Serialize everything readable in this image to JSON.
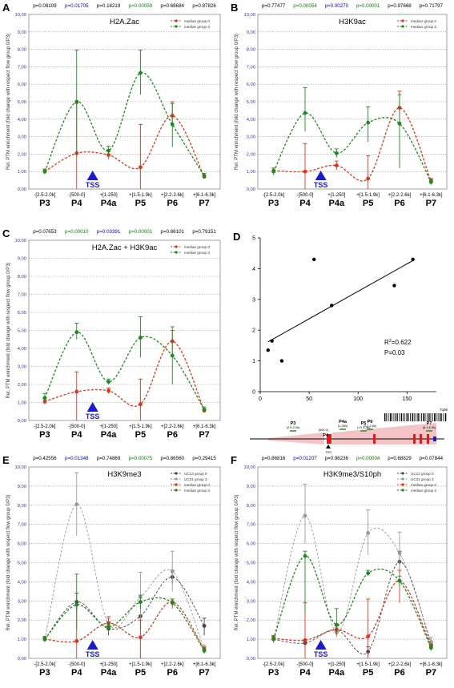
{
  "chart_data": [
    {
      "id": "A",
      "type": "line",
      "panel_letter": "A",
      "title": "H2A.Zac",
      "ylabel": "Rel. PTM enrichment (fold change with respect flow group 0/P3)",
      "ylim": [
        0,
        10
      ],
      "yticks": [
        "0,00",
        "1,00",
        "2,00",
        "3,00",
        "4,00",
        "5,00",
        "6,00",
        "7,00",
        "8,00",
        "9,00",
        "10,00"
      ],
      "categories": [
        "P3",
        "P4",
        "P4a",
        "P5",
        "P6",
        "P7"
      ],
      "ranges": [
        "-[2.5-2.0k]",
        "-[500-0]",
        "+[1-250]",
        "+[1.5-1.9k]",
        "+[2.2-2.6k]",
        "+[6.1-6.3k]"
      ],
      "pvalues": [
        {
          "text": "p=0.08109",
          "color": "#000000"
        },
        {
          "text": "p=0.01705",
          "color": "#0000cc"
        },
        {
          "text": "p=0.18219",
          "color": "#000000"
        },
        {
          "text": "p=0.00059",
          "color": "#008800"
        },
        {
          "text": "p=0.68684",
          "color": "#000000"
        },
        {
          "text": "p=0.87826",
          "color": "#000000"
        }
      ],
      "tss": {
        "label": "TSS",
        "between": [
          1,
          2
        ]
      },
      "series": [
        {
          "name": "median group 0",
          "color": "#e8301a",
          "values": [
            1.0,
            2.05,
            1.95,
            1.25,
            4.2,
            0.7
          ],
          "err": [
            [
              0.9,
              1.1
            ],
            [
              0.0,
              4.9
            ],
            [
              1.7,
              2.2
            ],
            [
              0.0,
              3.7
            ],
            [
              3.6,
              5.0
            ],
            [
              0.6,
              0.8
            ]
          ]
        },
        {
          "name": "median group 3",
          "color": "#1a8c1a",
          "values": [
            1.0,
            5.0,
            2.2,
            6.65,
            3.7,
            0.75
          ],
          "err": [
            [
              0.85,
              1.15
            ],
            [
              1.9,
              7.95
            ],
            [
              1.9,
              2.45
            ],
            [
              5.4,
              7.95
            ],
            [
              2.4,
              4.9
            ],
            [
              0.6,
              0.9
            ]
          ]
        }
      ]
    },
    {
      "id": "B",
      "type": "line",
      "panel_letter": "B",
      "title": "H3K9ac",
      "ylabel": "Rel. PTM enrichment (fold change with respect flow group 0/P3)",
      "ylim": [
        0,
        10
      ],
      "yticks": [
        "0,00",
        "1,00",
        "2,00",
        "3,00",
        "4,00",
        "5,00",
        "6,00",
        "7,00",
        "8,00",
        "9,00",
        "10,00"
      ],
      "categories": [
        "P3",
        "P4",
        "P4a",
        "P5",
        "P6",
        "P7"
      ],
      "ranges": [
        "-[2.5-2.0k]",
        "-[500-0]",
        "+[1-250]",
        "+[1.5-1.9k]",
        "+[2.2-2.6k]",
        "+[6.1-6.3k]"
      ],
      "pvalues": [
        {
          "text": "p=0.77477",
          "color": "#000000"
        },
        {
          "text": "p=0.00054",
          "color": "#008800"
        },
        {
          "text": "p=0.00270",
          "color": "#0000cc"
        },
        {
          "text": "p=0.00001",
          "color": "#008800"
        },
        {
          "text": "p=0.97668",
          "color": "#000000"
        },
        {
          "text": "p=0.71797",
          "color": "#000000"
        }
      ],
      "tss": {
        "label": "TSS",
        "between": [
          1,
          2
        ]
      },
      "series": [
        {
          "name": "median group 0",
          "color": "#e8301a",
          "values": [
            1.05,
            1.0,
            1.35,
            0.6,
            4.65,
            0.45
          ],
          "err": [
            [
              0.9,
              1.2
            ],
            [
              0.0,
              2.6
            ],
            [
              1.1,
              1.6
            ],
            [
              0.0,
              1.9
            ],
            [
              3.6,
              5.6
            ],
            [
              0.3,
              0.6
            ]
          ]
        },
        {
          "name": "median group 3",
          "color": "#1a8c1a",
          "values": [
            1.0,
            4.35,
            2.05,
            3.8,
            3.75,
            0.4
          ],
          "err": [
            [
              0.8,
              1.2
            ],
            [
              3.3,
              5.8
            ],
            [
              1.8,
              2.3
            ],
            [
              2.7,
              4.7
            ],
            [
              1.2,
              5.4
            ],
            [
              0.25,
              0.55
            ]
          ]
        }
      ]
    },
    {
      "id": "C",
      "type": "line",
      "panel_letter": "C",
      "title": "H2A.Zac + H3K9ac",
      "ylabel": "Rel. PTM enrichment (fold change with respect flow group 0/P3)",
      "ylim": [
        0,
        10
      ],
      "yticks": [
        "0,00",
        "1,00",
        "2,00",
        "3,00",
        "4,00",
        "5,00",
        "6,00",
        "7,00",
        "8,00",
        "9,00",
        "10,00"
      ],
      "categories": [
        "P3",
        "P4",
        "P4a",
        "P5",
        "P6",
        "P7"
      ],
      "ranges": [
        "-[2.5-2.0k]",
        "-[500-0]",
        "+[1-250]",
        "+[1.5-1.9k]",
        "+[2.2-2.6k]",
        "+[6.1-6.3k]"
      ],
      "pvalues": [
        {
          "text": "p=0.07653",
          "color": "#000000"
        },
        {
          "text": "p=0.00010",
          "color": "#008800"
        },
        {
          "text": "p=0.03391",
          "color": "#0000cc"
        },
        {
          "text": "p=0.00001",
          "color": "#008800"
        },
        {
          "text": "p=0.86101",
          "color": "#000000"
        },
        {
          "text": "p=0.79151",
          "color": "#000000"
        }
      ],
      "tss": {
        "label": "TSS",
        "between": [
          1,
          2
        ]
      },
      "series": [
        {
          "name": "median group 0",
          "color": "#e8301a",
          "values": [
            1.05,
            1.6,
            1.65,
            0.9,
            4.4,
            0.55
          ],
          "err": [
            [
              0.9,
              1.2
            ],
            [
              0.0,
              2.7
            ],
            [
              1.5,
              1.8
            ],
            [
              0.0,
              2.3
            ],
            [
              3.6,
              5.0
            ],
            [
              0.45,
              0.65
            ]
          ]
        },
        {
          "name": "median group 3",
          "color": "#1a8c1a",
          "values": [
            1.25,
            4.9,
            2.15,
            4.6,
            3.6,
            0.6
          ],
          "err": [
            [
              1.0,
              1.5
            ],
            [
              4.5,
              5.4
            ],
            [
              2.0,
              2.3
            ],
            [
              3.5,
              5.75
            ],
            [
              2.0,
              5.2
            ],
            [
              0.45,
              0.75
            ]
          ]
        }
      ]
    },
    {
      "id": "D",
      "type": "scatter",
      "panel_letter": "D",
      "title": "",
      "xlim": [
        0,
        180
      ],
      "ylim": [
        0,
        5
      ],
      "xticks": [
        "0",
        "50",
        "100",
        "150"
      ],
      "yticks": [
        "0",
        "1",
        "2",
        "3",
        "4",
        "5"
      ],
      "x": [
        8,
        12,
        22,
        55,
        73,
        137,
        156
      ],
      "y": [
        1.35,
        1.65,
        1.0,
        4.3,
        2.8,
        3.45,
        4.3
      ],
      "fit": {
        "x": [
          8,
          157
        ],
        "y": [
          1.62,
          4.28
        ]
      },
      "annotations": {
        "r2_prefix": "R",
        "r2_exp": "2",
        "r2_value": "=0.622",
        "p": "P=0.03"
      }
    },
    {
      "id": "E",
      "type": "line",
      "panel_letter": "E",
      "title": "H3K9me3",
      "ylabel": "Rel. PTM enrichment (fold change with respect flow group 0/P3)",
      "ylim": [
        0,
        10
      ],
      "yticks": [
        "0,00",
        "1,00",
        "2,00",
        "3,00",
        "4,00",
        "5,00",
        "6,00",
        "7,00",
        "8,00",
        "9,00",
        "10,00"
      ],
      "categories": [
        "P3",
        "P4",
        "P4a",
        "P5",
        "P6",
        "P7"
      ],
      "ranges": [
        "-[2.5-2.0k]",
        "-[500-0]",
        "+[1-250]",
        "+[1.5-1.9k]",
        "+[2.2-2.6k]",
        "+[6.1-6.3k]"
      ],
      "pvalues": [
        {
          "text": "p=0.42556",
          "color": "#000000"
        },
        {
          "text": "p=0.01348",
          "color": "#0000cc"
        },
        {
          "text": "p=0.74869",
          "color": "#000000"
        },
        {
          "text": "p=0.00075",
          "color": "#008800"
        },
        {
          "text": "p=0.86560",
          "color": "#000000"
        },
        {
          "text": "p=0.29415",
          "color": "#000000"
        }
      ],
      "tss": {
        "label": "TSS",
        "between": [
          1,
          2
        ]
      },
      "series": [
        {
          "name": "UC13 group 0",
          "color": "#444444",
          "values": [
            1.0,
            2.95,
            1.55,
            2.2,
            4.25,
            1.7
          ],
          "err": [
            [
              0.9,
              1.1
            ],
            [
              2.5,
              3.4
            ],
            [
              1.2,
              1.9
            ],
            [
              1.5,
              2.9
            ],
            [
              3.9,
              4.6
            ],
            [
              1.2,
              2.1
            ]
          ]
        },
        {
          "name": "UC31 group 3",
          "color": "#999999",
          "values": [
            1.0,
            8.05,
            1.8,
            3.2,
            4.55,
            0.5
          ],
          "err": [
            [
              0.9,
              1.1
            ],
            [
              6.4,
              9.7
            ],
            [
              1.4,
              2.2
            ],
            [
              2.0,
              4.5
            ],
            [
              3.5,
              5.6
            ],
            [
              0.3,
              0.7
            ]
          ]
        },
        {
          "name": "median group 0",
          "color": "#e8301a",
          "values": [
            1.0,
            0.9,
            1.85,
            1.1,
            2.95,
            0.45
          ],
          "err": [
            [
              0.9,
              1.1
            ],
            [
              0.0,
              2.8
            ],
            [
              1.5,
              2.1
            ],
            [
              0.0,
              2.0
            ],
            [
              2.6,
              3.1
            ],
            [
              0.3,
              0.6
            ]
          ]
        },
        {
          "name": "median group 3",
          "color": "#1a8c1a",
          "values": [
            1.0,
            2.8,
            1.65,
            2.95,
            2.9,
            0.4
          ],
          "err": [
            [
              0.85,
              1.15
            ],
            [
              1.5,
              4.4
            ],
            [
              1.4,
              1.9
            ],
            [
              2.6,
              3.3
            ],
            [
              2.7,
              3.1
            ],
            [
              0.25,
              0.55
            ]
          ]
        }
      ]
    },
    {
      "id": "F",
      "type": "line",
      "panel_letter": "F",
      "title": "H3K9me3/S10ph",
      "ylabel": "Rel. PTM enrichment (fold change with respect flow group 0/P3)",
      "ylim": [
        0,
        10
      ],
      "yticks": [
        "0,00",
        "1,00",
        "2,00",
        "3,00",
        "4,00",
        "5,00",
        "6,00",
        "7,00",
        "8,00",
        "9,00",
        "10,00"
      ],
      "categories": [
        "P3",
        "P4",
        "P4a",
        "P5",
        "P6",
        "P7"
      ],
      "ranges": [
        "-[2.5-2.0k]",
        "-[500-0]",
        "+[1-250]",
        "+[1.5-1.9k]",
        "+[2.2-2.6k]",
        "+[6.1-6.3k]"
      ],
      "pvalues": [
        {
          "text": "p=0.86816",
          "color": "#000000"
        },
        {
          "text": "p=0.01207",
          "color": "#0000cc"
        },
        {
          "text": "p=0.96236",
          "color": "#000000"
        },
        {
          "text": "p=0.00004",
          "color": "#008800"
        },
        {
          "text": "p=0.68829",
          "color": "#000000"
        },
        {
          "text": "p=0.07844",
          "color": "#000000"
        }
      ],
      "tss": {
        "label": "TSS",
        "between": [
          1,
          2
        ]
      },
      "series": [
        {
          "name": "UC13 group 0",
          "color": "#444444",
          "values": [
            1.0,
            0.8,
            1.5,
            0.35,
            5.05,
            0.7
          ],
          "err": [
            [
              0.9,
              1.1
            ],
            [
              0.6,
              1.0
            ],
            [
              1.3,
              1.7
            ],
            [
              0.1,
              0.6
            ],
            [
              4.6,
              5.6
            ],
            [
              0.5,
              0.9
            ]
          ]
        },
        {
          "name": "UC31 group 3",
          "color": "#999999",
          "values": [
            1.0,
            7.45,
            1.35,
            6.55,
            5.5,
            0.85
          ],
          "err": [
            [
              0.8,
              1.2
            ],
            [
              6.0,
              9.1
            ],
            [
              1.1,
              1.6
            ],
            [
              5.4,
              7.75
            ],
            [
              4.4,
              6.6
            ],
            [
              0.6,
              1.1
            ]
          ]
        },
        {
          "name": "median group 0",
          "color": "#e8301a",
          "values": [
            1.05,
            0.95,
            1.5,
            1.15,
            4.05,
            0.6
          ],
          "err": [
            [
              0.9,
              1.2
            ],
            [
              0.0,
              2.9
            ],
            [
              1.2,
              1.8
            ],
            [
              0.0,
              3.1
            ],
            [
              2.9,
              4.6
            ],
            [
              0.45,
              0.75
            ]
          ]
        },
        {
          "name": "median group 3",
          "color": "#1a8c1a",
          "values": [
            1.0,
            5.35,
            1.75,
            4.45,
            4.05,
            0.55
          ],
          "err": [
            [
              0.85,
              1.15
            ],
            [
              2.4,
              5.6
            ],
            [
              1.3,
              2.6
            ],
            [
              4.3,
              4.6
            ],
            [
              3.8,
              4.3
            ],
            [
              0.4,
              0.7
            ]
          ]
        }
      ]
    }
  ],
  "gene_map": {
    "labels": [
      {
        "name": "P3",
        "range": "(2.5-2.0k)"
      },
      {
        "name": "P4",
        "range": "(500-0)"
      },
      {
        "name": "P4a",
        "range": "(1-250)"
      },
      {
        "name": "P5",
        "range": "(1.5-1.9k)"
      },
      {
        "name": "P6",
        "range": "(2.2-2.6k)"
      },
      {
        "name": "P7",
        "range": "(6.1-6.3k)"
      }
    ],
    "tss": "TSS",
    "right_tag": "7q36"
  }
}
